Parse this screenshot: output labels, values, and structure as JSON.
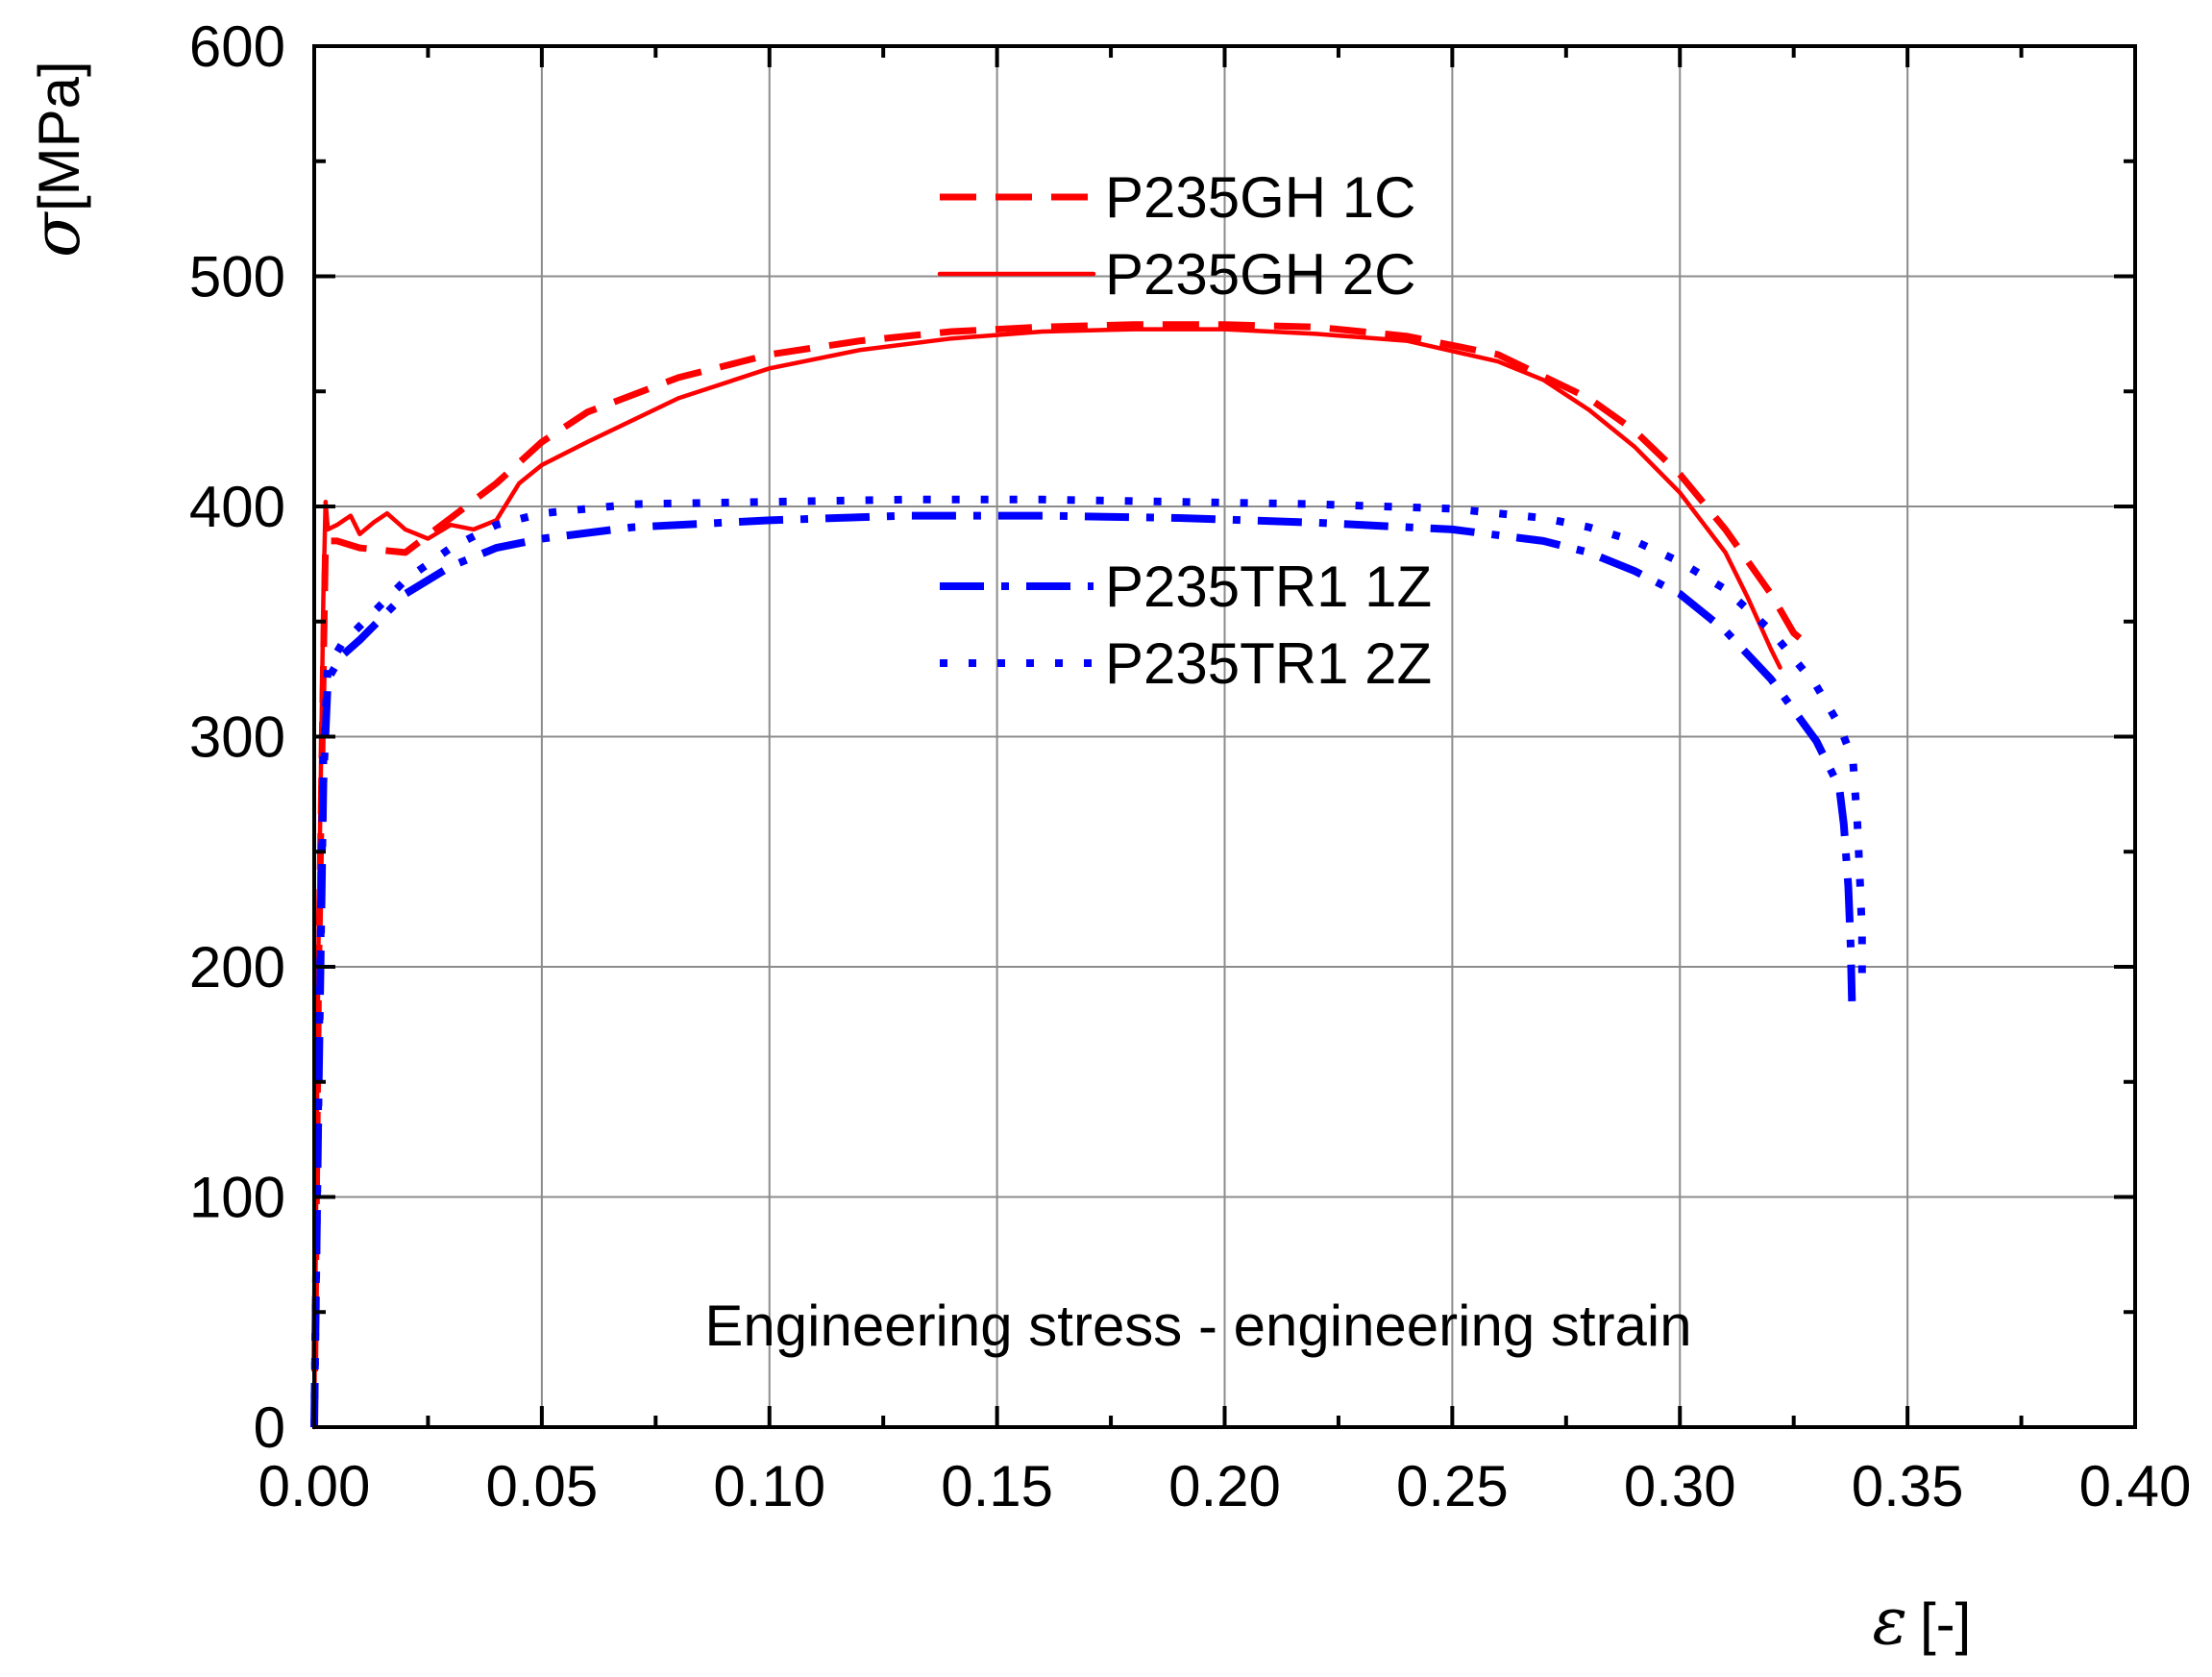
{
  "chart_data": {
    "type": "line",
    "title": "",
    "annotation": "Engineering stress - engineering strain",
    "xlabel": {
      "symbol": "ε",
      "unit": "[-]"
    },
    "ylabel": {
      "symbol": "σ",
      "unit": "[MPa]"
    },
    "xlim": [
      0.0,
      0.4
    ],
    "ylim": [
      0,
      600
    ],
    "x_ticks": [
      "0.00",
      "0.05",
      "0.10",
      "0.15",
      "0.20",
      "0.25",
      "0.30",
      "0.35",
      "0.40"
    ],
    "y_ticks": [
      "0",
      "100",
      "200",
      "300",
      "400",
      "500",
      "600"
    ],
    "grid": true,
    "legend_placement": "center",
    "series": [
      {
        "name": "P235GH 1C",
        "color": "#ff0000",
        "style": "dashed",
        "points": [
          [
            0.0,
            0
          ],
          [
            0.001,
            200
          ],
          [
            0.002,
            330
          ],
          [
            0.0025,
            385
          ],
          [
            0.005,
            385
          ],
          [
            0.01,
            382
          ],
          [
            0.02,
            380
          ],
          [
            0.03,
            395
          ],
          [
            0.04,
            410
          ],
          [
            0.05,
            428
          ],
          [
            0.06,
            441
          ],
          [
            0.08,
            456
          ],
          [
            0.1,
            466
          ],
          [
            0.12,
            472
          ],
          [
            0.14,
            476
          ],
          [
            0.16,
            478
          ],
          [
            0.18,
            479
          ],
          [
            0.2,
            479
          ],
          [
            0.22,
            478
          ],
          [
            0.24,
            474
          ],
          [
            0.26,
            466
          ],
          [
            0.28,
            447
          ],
          [
            0.29,
            433
          ],
          [
            0.3,
            414
          ],
          [
            0.31,
            390
          ],
          [
            0.32,
            362
          ],
          [
            0.325,
            345
          ],
          [
            0.328,
            340
          ]
        ]
      },
      {
        "name": "P235GH 2C",
        "color": "#ff0000",
        "style": "solid",
        "points": [
          [
            0.0,
            0
          ],
          [
            0.001,
            220
          ],
          [
            0.002,
            360
          ],
          [
            0.0025,
            402
          ],
          [
            0.003,
            390
          ],
          [
            0.005,
            392
          ],
          [
            0.008,
            396
          ],
          [
            0.01,
            388
          ],
          [
            0.013,
            393
          ],
          [
            0.016,
            397
          ],
          [
            0.02,
            390
          ],
          [
            0.025,
            386
          ],
          [
            0.03,
            392
          ],
          [
            0.035,
            390
          ],
          [
            0.04,
            394
          ],
          [
            0.045,
            410
          ],
          [
            0.05,
            418
          ],
          [
            0.06,
            428
          ],
          [
            0.08,
            447
          ],
          [
            0.1,
            460
          ],
          [
            0.12,
            468
          ],
          [
            0.14,
            473
          ],
          [
            0.16,
            476
          ],
          [
            0.18,
            477
          ],
          [
            0.2,
            477
          ],
          [
            0.22,
            475
          ],
          [
            0.24,
            472
          ],
          [
            0.26,
            463
          ],
          [
            0.27,
            455
          ],
          [
            0.28,
            442
          ],
          [
            0.29,
            426
          ],
          [
            0.3,
            406
          ],
          [
            0.31,
            380
          ],
          [
            0.315,
            360
          ],
          [
            0.32,
            338
          ],
          [
            0.322,
            330
          ]
        ]
      },
      {
        "name": "P235TR1 1Z",
        "color": "#0000ff",
        "style": "dash-dot",
        "points": [
          [
            0.0,
            0
          ],
          [
            0.001,
            150
          ],
          [
            0.002,
            280
          ],
          [
            0.003,
            325
          ],
          [
            0.006,
            335
          ],
          [
            0.01,
            342
          ],
          [
            0.015,
            352
          ],
          [
            0.02,
            362
          ],
          [
            0.03,
            374
          ],
          [
            0.04,
            382
          ],
          [
            0.05,
            386
          ],
          [
            0.07,
            391
          ],
          [
            0.1,
            394
          ],
          [
            0.13,
            396
          ],
          [
            0.16,
            396
          ],
          [
            0.19,
            395
          ],
          [
            0.22,
            393
          ],
          [
            0.25,
            390
          ],
          [
            0.27,
            385
          ],
          [
            0.28,
            380
          ],
          [
            0.29,
            372
          ],
          [
            0.3,
            362
          ],
          [
            0.31,
            346
          ],
          [
            0.32,
            325
          ],
          [
            0.33,
            298
          ],
          [
            0.335,
            278
          ],
          [
            0.336,
            262
          ],
          [
            0.337,
            235
          ],
          [
            0.3375,
            210
          ],
          [
            0.3378,
            185
          ]
        ]
      },
      {
        "name": "P235TR1 2Z",
        "color": "#0000ff",
        "style": "dotted",
        "points": [
          [
            0.0,
            0
          ],
          [
            0.001,
            160
          ],
          [
            0.002,
            290
          ],
          [
            0.003,
            330
          ],
          [
            0.006,
            340
          ],
          [
            0.01,
            348
          ],
          [
            0.015,
            358
          ],
          [
            0.02,
            368
          ],
          [
            0.03,
            382
          ],
          [
            0.04,
            392
          ],
          [
            0.05,
            397
          ],
          [
            0.07,
            401
          ],
          [
            0.1,
            402
          ],
          [
            0.13,
            403
          ],
          [
            0.16,
            403
          ],
          [
            0.19,
            402
          ],
          [
            0.22,
            401
          ],
          [
            0.25,
            399
          ],
          [
            0.27,
            395
          ],
          [
            0.28,
            391
          ],
          [
            0.29,
            385
          ],
          [
            0.3,
            376
          ],
          [
            0.31,
            364
          ],
          [
            0.32,
            346
          ],
          [
            0.33,
            322
          ],
          [
            0.335,
            305
          ],
          [
            0.338,
            290
          ],
          [
            0.339,
            262
          ],
          [
            0.3395,
            240
          ],
          [
            0.34,
            215
          ],
          [
            0.34,
            192
          ]
        ]
      }
    ]
  }
}
